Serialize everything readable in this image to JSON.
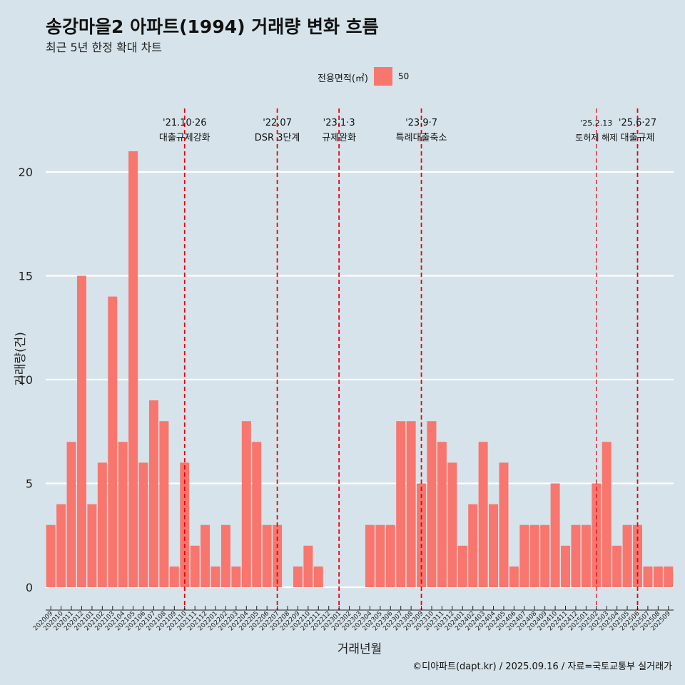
{
  "title": "송강마을2 아파트(1994) 거래량 변화 흐름",
  "subtitle": "최근 5년 한정 확대 차트",
  "caption": "©디아파트(dapt.kr) / 2025.09.16 / 자료=국토교통부 실거래가",
  "legend": {
    "title": "전용면적(㎡)",
    "items": [
      "50"
    ]
  },
  "colors": {
    "bar": "#f8766d",
    "background": "#d6e3ea",
    "grid": "#ffffff",
    "event_line": "#e8000b"
  },
  "chart_data": {
    "type": "bar",
    "xlabel": "거래년월",
    "ylabel": "거래량(건)",
    "ylim": [
      0,
      21
    ],
    "yticks": [
      0,
      5,
      10,
      15,
      20
    ],
    "grid": true,
    "legend_position": "top",
    "categories": [
      "202009",
      "202010",
      "202011",
      "202012",
      "202101",
      "202102",
      "202103",
      "202104",
      "202105",
      "202106",
      "202107",
      "202108",
      "202109",
      "202110",
      "202111",
      "202112",
      "202201",
      "202202",
      "202203",
      "202204",
      "202205",
      "202206",
      "202207",
      "202208",
      "202209",
      "202210",
      "202211",
      "202212",
      "202301",
      "202302",
      "202303",
      "202304",
      "202305",
      "202306",
      "202307",
      "202308",
      "202309",
      "202310",
      "202311",
      "202312",
      "202401",
      "202402",
      "202403",
      "202404",
      "202405",
      "202406",
      "202407",
      "202408",
      "202409",
      "202410",
      "202411",
      "202412",
      "202501",
      "202502",
      "202503",
      "202504",
      "202505",
      "202506",
      "202507",
      "202508",
      "202509"
    ],
    "series": [
      {
        "name": "50",
        "values": [
          3,
          4,
          7,
          15,
          4,
          6,
          14,
          7,
          21,
          6,
          9,
          8,
          1,
          6,
          2,
          3,
          1,
          3,
          1,
          8,
          7,
          3,
          3,
          0,
          1,
          2,
          1,
          0,
          0,
          0,
          0,
          3,
          3,
          3,
          8,
          8,
          5,
          8,
          7,
          6,
          2,
          4,
          7,
          4,
          6,
          1,
          3,
          3,
          3,
          5,
          2,
          3,
          3,
          5,
          7,
          2,
          3,
          3,
          1,
          1,
          1
        ]
      }
    ],
    "events": [
      {
        "month": "202110",
        "date": "'21.10·26",
        "label": "대출규제강화"
      },
      {
        "month": "202207",
        "date": "'22.07",
        "label": "DSR 3단계"
      },
      {
        "month": "202301",
        "date": "'23.1·3",
        "label": "규제완화"
      },
      {
        "month": "202309",
        "date": "'23.9·7",
        "label": "특례대출축소"
      },
      {
        "month": "202502",
        "date": "'25.2.13",
        "label": "토허제 해제"
      },
      {
        "month": "202506",
        "date": "'25.6·27",
        "label": "대출규제"
      }
    ]
  }
}
